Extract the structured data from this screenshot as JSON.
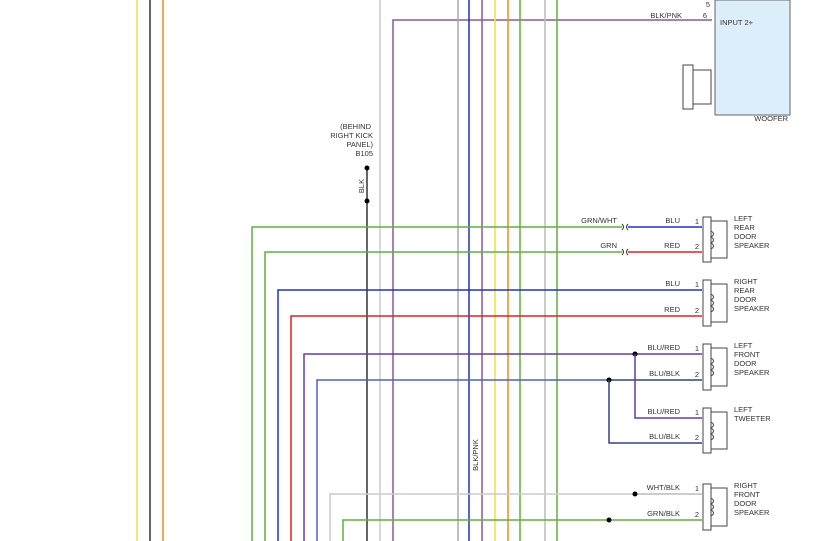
{
  "woofer": {
    "pins": [
      {
        "number": "5"
      },
      {
        "wire": "BLK/PNK",
        "number": "6",
        "label": "INPUT 2+"
      }
    ],
    "name": "WOOFER"
  },
  "ground": {
    "location": [
      "(BEHIND",
      "RIGHT KICK",
      "PANEL)"
    ],
    "id": "B105",
    "wire": "BLK"
  },
  "vertical_label": "BLK/PNK",
  "speakers": [
    {
      "name": [
        "LEFT",
        "REAR",
        "DOOR",
        "SPEAKER"
      ],
      "pins": [
        {
          "harness_wire": "GRN/WHT",
          "wire": "BLU",
          "number": "1"
        },
        {
          "harness_wire": "GRN",
          "wire": "RED",
          "number": "2"
        }
      ]
    },
    {
      "name": [
        "RIGHT",
        "REAR",
        "DOOR",
        "SPEAKER"
      ],
      "pins": [
        {
          "wire": "BLU",
          "number": "1"
        },
        {
          "wire": "RED",
          "number": "2"
        }
      ]
    },
    {
      "name": [
        "LEFT",
        "FRONT",
        "DOOR",
        "SPEAKER"
      ],
      "pins": [
        {
          "wire": "BLU/RED",
          "number": "1"
        },
        {
          "wire": "BLU/BLK",
          "number": "2"
        }
      ]
    },
    {
      "name": [
        "LEFT",
        "TWEETER"
      ],
      "pins": [
        {
          "wire": "BLU/RED",
          "number": "1"
        },
        {
          "wire": "BLU/BLK",
          "number": "2"
        }
      ]
    },
    {
      "name": [
        "RIGHT",
        "FRONT",
        "DOOR",
        "SPEAKER"
      ],
      "pins": [
        {
          "wire": "WHT/BLK",
          "number": "1"
        },
        {
          "wire": "GRN/BLK",
          "number": "2"
        }
      ]
    }
  ]
}
